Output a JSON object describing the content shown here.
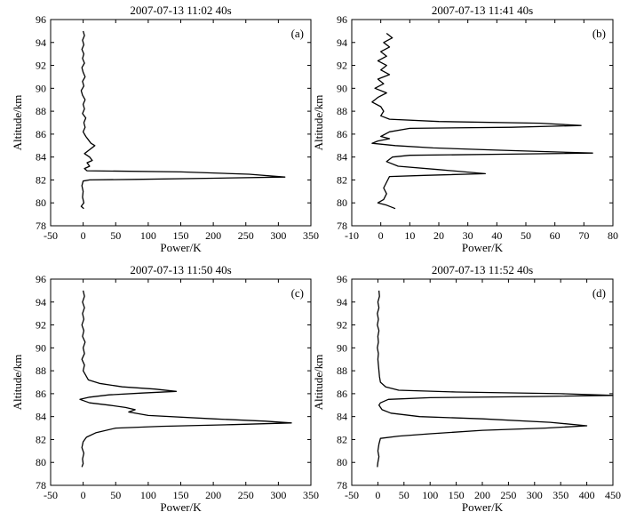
{
  "chart_data": [
    {
      "type": "line",
      "title": "2007-07-13 11:02 40s",
      "panel_label": "(a)",
      "xlabel": "Power/K",
      "ylabel": "Altitude/km",
      "xlim": [
        -50,
        350
      ],
      "ylim": [
        78,
        96
      ],
      "xticks": [
        "-50",
        "0",
        "50",
        "100",
        "150",
        "200",
        "250",
        "300",
        "350"
      ],
      "yticks": [
        "78",
        "80",
        "82",
        "84",
        "86",
        "88",
        "90",
        "92",
        "94",
        "96"
      ],
      "series": [
        {
          "points": [
            [
              0,
              95
            ],
            [
              2,
              94.6
            ],
            [
              -1,
              94.2
            ],
            [
              1,
              93.8
            ],
            [
              -2,
              93.4
            ],
            [
              1,
              93
            ],
            [
              -1,
              92.6
            ],
            [
              2,
              92.2
            ],
            [
              -2,
              91.8
            ],
            [
              0,
              91.4
            ],
            [
              3,
              91
            ],
            [
              -1,
              90.6
            ],
            [
              1,
              90.2
            ],
            [
              -3,
              89.8
            ],
            [
              -1,
              89.4
            ],
            [
              3,
              89
            ],
            [
              0,
              88.6
            ],
            [
              2,
              88.2
            ],
            [
              -1,
              87.8
            ],
            [
              4,
              87.4
            ],
            [
              1,
              87
            ],
            [
              3,
              86.6
            ],
            [
              0,
              86.2
            ],
            [
              4,
              85.8
            ],
            [
              8,
              85.5
            ],
            [
              12,
              85.2
            ],
            [
              18,
              85
            ],
            [
              9,
              84.6
            ],
            [
              2,
              84.3
            ],
            [
              10,
              84
            ],
            [
              14,
              83.7
            ],
            [
              6,
              83.5
            ],
            [
              10,
              83.2
            ],
            [
              2,
              83
            ],
            [
              6,
              82.8
            ],
            [
              150,
              82.7
            ],
            [
              255,
              82.5
            ],
            [
              310,
              82.25
            ],
            [
              200,
              82.15
            ],
            [
              80,
              82.05
            ],
            [
              10,
              82
            ],
            [
              0,
              81.9
            ],
            [
              -2,
              81.5
            ],
            [
              0,
              81
            ],
            [
              -1,
              80.5
            ],
            [
              1,
              80
            ],
            [
              -3,
              79.7
            ],
            [
              1,
              79.5
            ]
          ]
        }
      ]
    },
    {
      "type": "line",
      "title": "2007-07-13 11:41 40s",
      "panel_label": "(b)",
      "xlabel": "Power/K",
      "ylabel": "Altitude/km",
      "xlim": [
        -10,
        80
      ],
      "ylim": [
        78,
        96
      ],
      "xticks": [
        "-10",
        "0",
        "10",
        "20",
        "30",
        "40",
        "50",
        "60",
        "70",
        "80"
      ],
      "yticks": [
        "78",
        "80",
        "82",
        "84",
        "86",
        "88",
        "90",
        "92",
        "94",
        "96"
      ],
      "series": [
        {
          "points": [
            [
              2,
              94.8
            ],
            [
              4,
              94.4
            ],
            [
              1,
              94
            ],
            [
              3,
              93.6
            ],
            [
              0,
              93.2
            ],
            [
              2,
              92.8
            ],
            [
              -1,
              92.4
            ],
            [
              2,
              92
            ],
            [
              0,
              91.6
            ],
            [
              3,
              91.2
            ],
            [
              -1,
              90.8
            ],
            [
              1,
              90.4
            ],
            [
              -2,
              90
            ],
            [
              2,
              89.6
            ],
            [
              -1,
              89.2
            ],
            [
              -3,
              88.8
            ],
            [
              0,
              88.4
            ],
            [
              1,
              88
            ],
            [
              0,
              87.6
            ],
            [
              3,
              87.3
            ],
            [
              20,
              87.1
            ],
            [
              55,
              86.95
            ],
            [
              69,
              86.75
            ],
            [
              45,
              86.6
            ],
            [
              10,
              86.5
            ],
            [
              3,
              86.2
            ],
            [
              0,
              85.8
            ],
            [
              3,
              85.6
            ],
            [
              -1,
              85.4
            ],
            [
              -3,
              85.2
            ],
            [
              5,
              85
            ],
            [
              18,
              84.8
            ],
            [
              40,
              84.6
            ],
            [
              73,
              84.35
            ],
            [
              45,
              84.25
            ],
            [
              10,
              84.15
            ],
            [
              4,
              84
            ],
            [
              2,
              83.6
            ],
            [
              6,
              83.2
            ],
            [
              20,
              82.9
            ],
            [
              36,
              82.55
            ],
            [
              15,
              82.4
            ],
            [
              3,
              82.3
            ],
            [
              2,
              81.8
            ],
            [
              1,
              81.3
            ],
            [
              2,
              80.8
            ],
            [
              1,
              80.3
            ],
            [
              -1,
              80
            ],
            [
              2,
              79.8
            ],
            [
              5,
              79.5
            ]
          ]
        }
      ]
    },
    {
      "type": "line",
      "title": "2007-07-13 11:50 40s",
      "panel_label": "(c)",
      "xlabel": "Power/K",
      "ylabel": "Altitude/km",
      "xlim": [
        -50,
        350
      ],
      "ylim": [
        78,
        96
      ],
      "xticks": [
        "-50",
        "0",
        "50",
        "100",
        "150",
        "200",
        "250",
        "300",
        "350"
      ],
      "yticks": [
        "78",
        "80",
        "82",
        "84",
        "86",
        "88",
        "90",
        "92",
        "94",
        "96"
      ],
      "series": [
        {
          "points": [
            [
              0,
              95
            ],
            [
              2,
              94.5
            ],
            [
              -1,
              94
            ],
            [
              2,
              93.5
            ],
            [
              -1,
              93
            ],
            [
              1,
              92.5
            ],
            [
              -2,
              92
            ],
            [
              1,
              91.5
            ],
            [
              -1,
              91
            ],
            [
              3,
              90.5
            ],
            [
              0,
              90
            ],
            [
              2,
              89.5
            ],
            [
              -2,
              89
            ],
            [
              2,
              88.5
            ],
            [
              0,
              88
            ],
            [
              4,
              87.6
            ],
            [
              8,
              87.2
            ],
            [
              25,
              86.9
            ],
            [
              60,
              86.6
            ],
            [
              110,
              86.4
            ],
            [
              143,
              86.2
            ],
            [
              90,
              86.05
            ],
            [
              40,
              85.9
            ],
            [
              10,
              85.7
            ],
            [
              -5,
              85.5
            ],
            [
              10,
              85.2
            ],
            [
              40,
              85
            ],
            [
              65,
              84.8
            ],
            [
              80,
              84.6
            ],
            [
              70,
              84.4
            ],
            [
              100,
              84.1
            ],
            [
              200,
              83.8
            ],
            [
              280,
              83.6
            ],
            [
              320,
              83.45
            ],
            [
              230,
              83.3
            ],
            [
              120,
              83.15
            ],
            [
              50,
              83
            ],
            [
              20,
              82.6
            ],
            [
              5,
              82.2
            ],
            [
              0,
              81.8
            ],
            [
              -2,
              81.3
            ],
            [
              1,
              80.8
            ],
            [
              -1,
              80.3
            ],
            [
              0,
              79.9
            ],
            [
              -2,
              79.6
            ]
          ]
        }
      ]
    },
    {
      "type": "line",
      "title": "2007-07-13 11:52 40s",
      "panel_label": "(d)",
      "xlabel": "Power/K",
      "ylabel": "Altitude/km",
      "xlim": [
        -50,
        450
      ],
      "ylim": [
        78,
        96
      ],
      "xticks": [
        "-50",
        "0",
        "50",
        "100",
        "150",
        "200",
        "250",
        "300",
        "350",
        "400",
        "450"
      ],
      "yticks": [
        "78",
        "80",
        "82",
        "84",
        "86",
        "88",
        "90",
        "92",
        "94",
        "96"
      ],
      "series": [
        {
          "points": [
            [
              2,
              95
            ],
            [
              3,
              94.5
            ],
            [
              0,
              94
            ],
            [
              2,
              93.5
            ],
            [
              -1,
              93
            ],
            [
              1,
              92.5
            ],
            [
              -1,
              92
            ],
            [
              2,
              91.5
            ],
            [
              0,
              91
            ],
            [
              1,
              90.5
            ],
            [
              -1,
              90
            ],
            [
              1,
              89.5
            ],
            [
              0,
              89
            ],
            [
              1,
              88.5
            ],
            [
              2,
              88
            ],
            [
              3,
              87.5
            ],
            [
              5,
              87
            ],
            [
              15,
              86.6
            ],
            [
              40,
              86.3
            ],
            [
              150,
              86.15
            ],
            [
              350,
              86
            ],
            [
              450,
              85.85
            ],
            [
              300,
              85.75
            ],
            [
              100,
              85.65
            ],
            [
              20,
              85.5
            ],
            [
              5,
              85.2
            ],
            [
              2,
              85
            ],
            [
              8,
              84.6
            ],
            [
              25,
              84.3
            ],
            [
              80,
              84
            ],
            [
              200,
              83.8
            ],
            [
              330,
              83.5
            ],
            [
              400,
              83.2
            ],
            [
              320,
              83
            ],
            [
              200,
              82.8
            ],
            [
              100,
              82.5
            ],
            [
              40,
              82.3
            ],
            [
              5,
              82.1
            ],
            [
              2,
              81.6
            ],
            [
              0,
              81
            ],
            [
              2,
              80.5
            ],
            [
              0,
              80
            ],
            [
              -1,
              79.6
            ]
          ]
        }
      ]
    }
  ]
}
